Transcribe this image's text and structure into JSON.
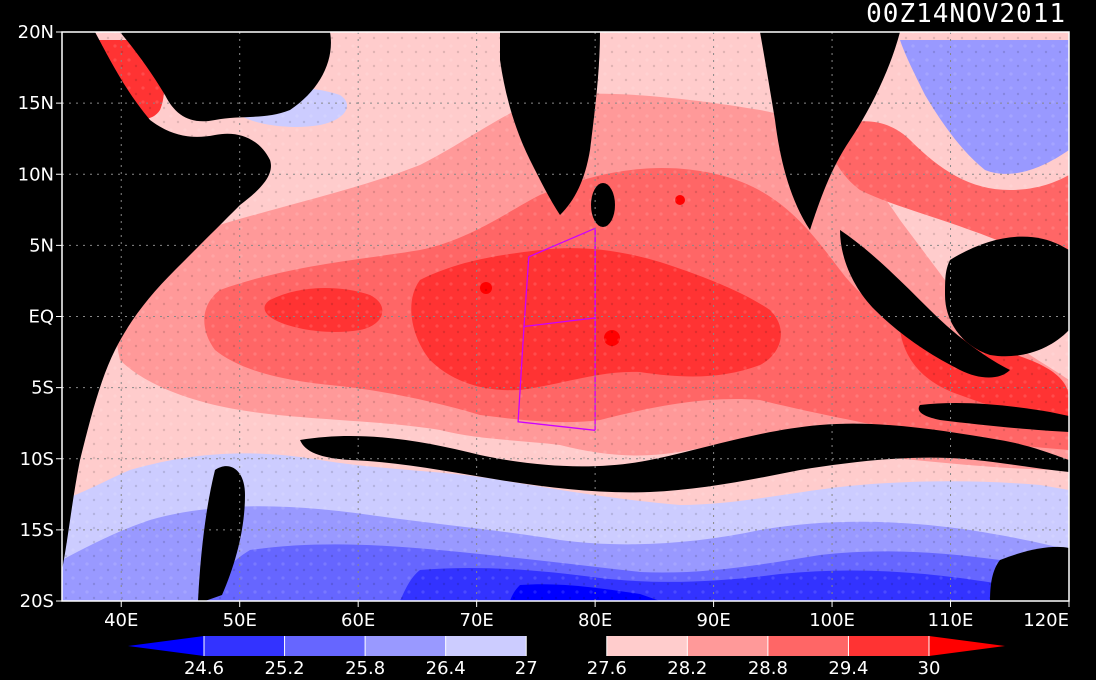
{
  "title": "00Z14NOV2011",
  "map": {
    "lon_range": [
      35,
      120
    ],
    "lat_range": [
      -20,
      20
    ],
    "lat_ticks": [
      {
        "value": 20,
        "label": "20N"
      },
      {
        "value": 15,
        "label": "15N"
      },
      {
        "value": 10,
        "label": "10N"
      },
      {
        "value": 5,
        "label": "5N"
      },
      {
        "value": 0,
        "label": "EQ"
      },
      {
        "value": -5,
        "label": "5S"
      },
      {
        "value": -10,
        "label": "10S"
      },
      {
        "value": -15,
        "label": "15S"
      },
      {
        "value": -20,
        "label": "20S"
      }
    ],
    "lon_ticks": [
      {
        "value": 40,
        "label": "40E"
      },
      {
        "value": 50,
        "label": "50E"
      },
      {
        "value": 60,
        "label": "60E"
      },
      {
        "value": 70,
        "label": "70E"
      },
      {
        "value": 80,
        "label": "80E"
      },
      {
        "value": 90,
        "label": "90E"
      },
      {
        "value": 100,
        "label": "100E"
      },
      {
        "value": 110,
        "label": "110E"
      },
      {
        "value": 120,
        "label": "120E"
      }
    ],
    "grid": "dotted"
  },
  "colorbar": {
    "labels": [
      "24.6",
      "25.2",
      "25.8",
      "26.4",
      "27",
      "27.6",
      "28.2",
      "28.8",
      "29.4",
      "30"
    ],
    "colors": [
      "#0000ff",
      "#3333ff",
      "#6666ff",
      "#9999ff",
      "#ccccff",
      "#000000",
      "#ffcccc",
      "#ff9999",
      "#ff6666",
      "#ff3333",
      "#ff0000"
    ]
  },
  "contours": [
    {
      "name": "west-box",
      "color": "#cc00ff",
      "points": [
        [
          74.4,
          4.2
        ],
        [
          80,
          6.2
        ],
        [
          80,
          -1
        ]
      ]
    },
    {
      "name": "box-west-edge",
      "color": "#cc00ff",
      "points": [
        [
          74.4,
          4.2
        ],
        [
          74,
          -0.7
        ],
        [
          73.5,
          -7.4
        ],
        [
          80,
          -8
        ]
      ]
    },
    {
      "name": "box-mid-edge",
      "color": "#cc00ff",
      "points": [
        [
          74,
          -0.7
        ],
        [
          80,
          -0.1
        ]
      ]
    },
    {
      "name": "box-east-edge",
      "color": "#cc00ff",
      "points": [
        [
          80,
          6.2
        ],
        [
          80,
          -8
        ]
      ]
    }
  ]
}
